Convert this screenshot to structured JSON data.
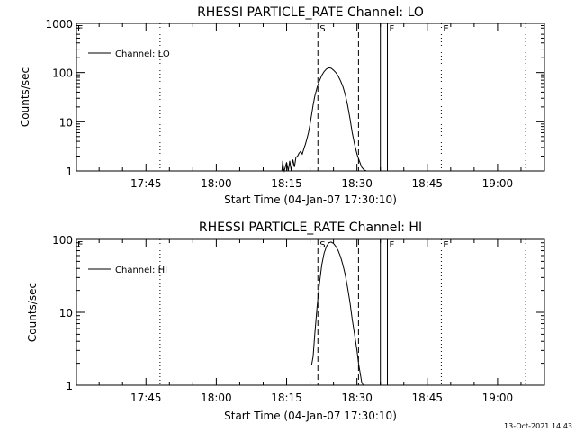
{
  "footer": {
    "stamp": "13-Oct-2021 14:43"
  },
  "chart_data": [
    {
      "type": "line",
      "title": "RHESSI PARTICLE_RATE Channel: LO",
      "xlabel": "Start Time (04-Jan-07 17:30:10)",
      "ylabel": "Counts/sec",
      "yscale": "log",
      "ylim": [
        1,
        1000
      ],
      "yticks": [
        1,
        10,
        100,
        1000
      ],
      "ytick_labels": [
        "1",
        "10",
        "100",
        "1000"
      ],
      "xlim": [
        "17:30:10",
        "19:10:00"
      ],
      "xticks": [
        "17:45",
        "18:00",
        "18:15",
        "18:30",
        "18:45",
        "19:00"
      ],
      "legend": {
        "label": "Channel: LO",
        "placement": "top-left"
      },
      "grid": false,
      "series": [
        {
          "name": "Channel: LO",
          "x": [
            "18:14:00",
            "18:14:10",
            "18:14:20",
            "18:14:30",
            "18:15:00",
            "18:15:20",
            "18:15:40",
            "18:16:00",
            "18:16:20",
            "18:16:40",
            "18:17:00",
            "18:17:20",
            "18:17:40",
            "18:18:00",
            "18:18:20",
            "18:18:40",
            "18:19:00",
            "18:19:20",
            "18:19:40",
            "18:20:00",
            "18:20:20",
            "18:20:40",
            "18:21:00",
            "18:21:30",
            "18:22:00",
            "18:22:30",
            "18:23:00",
            "18:23:30",
            "18:24:00",
            "18:24:30",
            "18:25:00",
            "18:25:30",
            "18:26:00",
            "18:26:30",
            "18:27:00",
            "18:27:30",
            "18:28:00",
            "18:28:30",
            "18:29:00",
            "18:29:30",
            "18:30:00",
            "18:30:30",
            "18:31:00",
            "18:31:30",
            "18:32:00"
          ],
          "values": [
            1,
            1.6,
            1.1,
            1,
            1.5,
            1,
            1.6,
            1,
            1.7,
            1.2,
            1.9,
            2.0,
            2.3,
            2.5,
            2.2,
            2.8,
            3.5,
            4.5,
            6,
            9,
            14,
            22,
            33,
            50,
            68,
            88,
            105,
            118,
            125,
            122,
            112,
            100,
            85,
            68,
            52,
            36,
            22,
            12,
            6,
            3.5,
            2.2,
            1.6,
            1.2,
            1.05,
            1
          ]
        }
      ],
      "markers": [
        {
          "label": "S",
          "x": "18:21:40",
          "style": "dashed"
        },
        {
          "label": "",
          "x": "18:30:20",
          "style": "dashed"
        },
        {
          "label": "",
          "x": "18:35:00",
          "style": "solid"
        },
        {
          "label": "F",
          "x": "18:36:30",
          "style": "solid"
        },
        {
          "label": "E",
          "x": "18:48:00",
          "style": "dotted"
        },
        {
          "label": "",
          "x": "17:48:00",
          "style": "dotted"
        },
        {
          "label": "",
          "x": "19:06:00",
          "style": "dotted"
        }
      ],
      "corner_label": "E"
    },
    {
      "type": "line",
      "title": "RHESSI PARTICLE_RATE Channel: HI",
      "xlabel": "Start Time (04-Jan-07 17:30:10)",
      "ylabel": "Counts/sec",
      "yscale": "log",
      "ylim": [
        1,
        100
      ],
      "yticks": [
        1,
        10,
        100
      ],
      "ytick_labels": [
        "1",
        "10",
        "100"
      ],
      "xlim": [
        "17:30:10",
        "19:10:00"
      ],
      "xticks": [
        "17:45",
        "18:00",
        "18:15",
        "18:30",
        "18:45",
        "19:00"
      ],
      "legend": {
        "label": "Channel: HI",
        "placement": "top-left"
      },
      "grid": false,
      "series": [
        {
          "name": "Channel: HI",
          "x": [
            "18:20:20",
            "18:20:40",
            "18:21:00",
            "18:21:30",
            "18:22:00",
            "18:22:30",
            "18:23:00",
            "18:23:30",
            "18:24:00",
            "18:24:30",
            "18:25:00",
            "18:25:30",
            "18:26:00",
            "18:26:30",
            "18:27:00",
            "18:27:30",
            "18:28:00",
            "18:28:30",
            "18:29:00",
            "18:29:30",
            "18:30:00",
            "18:30:20",
            "18:30:40",
            "18:31:00",
            "18:31:20"
          ],
          "values": [
            1.9,
            2.5,
            5,
            12,
            25,
            45,
            65,
            80,
            90,
            92,
            88,
            80,
            70,
            58,
            45,
            33,
            22,
            14,
            8,
            5,
            3,
            2,
            1.5,
            1.1,
            1
          ]
        }
      ],
      "markers": [
        {
          "label": "S",
          "x": "18:21:40",
          "style": "dashed"
        },
        {
          "label": "",
          "x": "18:30:20",
          "style": "dashed"
        },
        {
          "label": "",
          "x": "18:35:00",
          "style": "solid"
        },
        {
          "label": "F",
          "x": "18:36:30",
          "style": "solid"
        },
        {
          "label": "E",
          "x": "18:48:00",
          "style": "dotted"
        },
        {
          "label": "",
          "x": "17:48:00",
          "style": "dotted"
        },
        {
          "label": "",
          "x": "19:06:00",
          "style": "dotted"
        }
      ],
      "corner_label": "E"
    }
  ]
}
